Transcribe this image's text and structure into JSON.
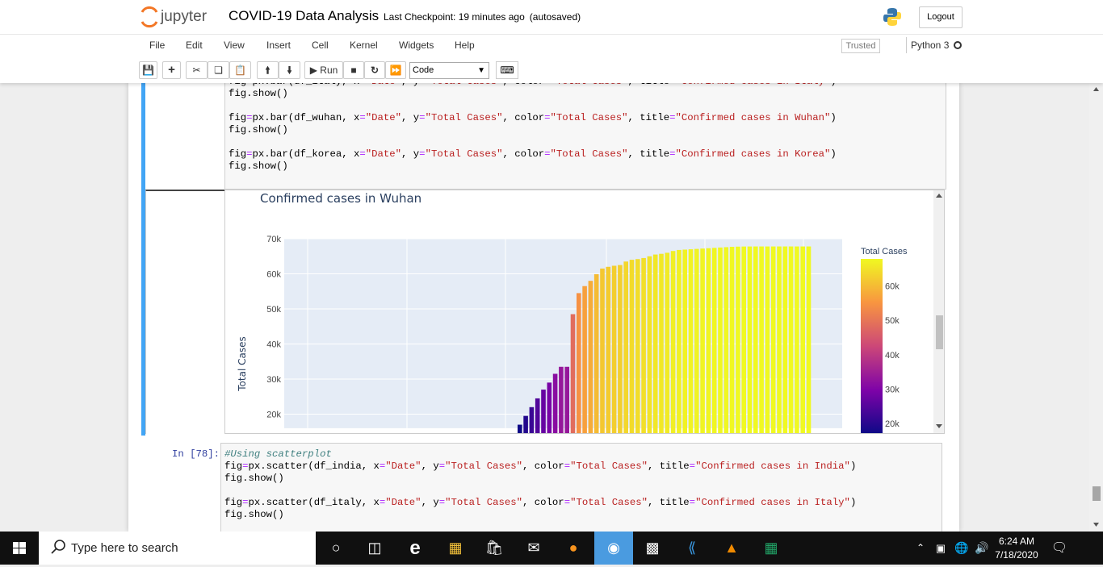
{
  "header": {
    "brand": "jupyter",
    "notebook_name": "COVID-19 Data Analysis",
    "checkpoint": "Last Checkpoint: 19 minutes ago",
    "autosaved": "(autosaved)",
    "logout_label": "Logout"
  },
  "menu": [
    "File",
    "Edit",
    "View",
    "Insert",
    "Cell",
    "Kernel",
    "Widgets",
    "Help"
  ],
  "status": {
    "trusted": "Trusted",
    "kernel": "Python 3"
  },
  "toolbar": {
    "run_label": "Run",
    "cell_type": "Code"
  },
  "cell1": {
    "lines": [
      "fig=px.bar(df_italy, x=\"Date\", y=\"Total Cases\", color=\"Total Cases\", title=\"Confirmed cases in Italy\")",
      "fig.show()",
      "",
      "fig=px.bar(df_wuhan, x=\"Date\", y=\"Total Cases\", color=\"Total Cases\", title=\"Confirmed cases in Wuhan\")",
      "fig.show()",
      "",
      "fig=px.bar(df_korea, x=\"Date\", y=\"Total Cases\", color=\"Total Cases\", title=\"Confirmed cases in Korea\")",
      "fig.show()"
    ]
  },
  "cell2": {
    "prompt": "In [78]:",
    "lines": [
      "#Using scatterplot",
      "fig=px.scatter(df_india, x=\"Date\", y=\"Total Cases\", color=\"Total Cases\", title=\"Confirmed cases in India\")",
      "fig.show()",
      "",
      "fig=px.scatter(df_italy, x=\"Date\", y=\"Total Cases\", color=\"Total Cases\", title=\"Confirmed cases in Italy\")",
      "fig.show()"
    ]
  },
  "chart_data": {
    "type": "bar",
    "title": "Confirmed cases in Wuhan",
    "ylabel": "Total Cases",
    "xlabel": "",
    "ylim": [
      16000,
      70000
    ],
    "yticks": [
      "20k",
      "30k",
      "40k",
      "50k",
      "60k",
      "70k"
    ],
    "legend_title": "Total Cases",
    "colorbar_ticks": [
      "20k",
      "30k",
      "40k",
      "50k",
      "60k"
    ],
    "colorscale": [
      "#0d0887",
      "#7e03a8",
      "#cc4778",
      "#f89540",
      "#f0f921"
    ],
    "values": [
      17000,
      19500,
      22000,
      24500,
      27000,
      29000,
      31500,
      33500,
      33500,
      48500,
      54500,
      56500,
      58000,
      59900,
      61500,
      62000,
      62300,
      62500,
      63500,
      64000,
      64200,
      64500,
      65000,
      65500,
      65700,
      66000,
      66500,
      66800,
      66900,
      67000,
      67100,
      67200,
      67300,
      67400,
      67500,
      67600,
      67700,
      67750,
      67780,
      67790,
      67800,
      67800,
      67800,
      67801,
      67802,
      67803,
      67803,
      67803,
      67803,
      67803
    ]
  },
  "taskbar": {
    "search_placeholder": "Type here to search",
    "time": "6:24 AM",
    "date": "7/18/2020"
  }
}
